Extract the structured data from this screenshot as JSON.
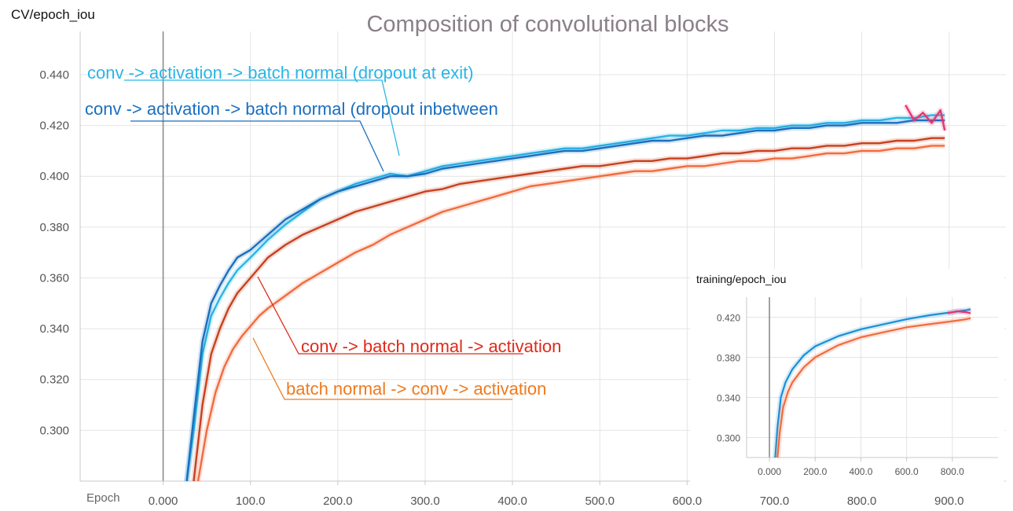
{
  "chart_data": [
    {
      "id": "main",
      "type": "line",
      "panel_label": "CV/epoch_iou",
      "title": "Composition of convolutional blocks",
      "xlabel": "Epoch",
      "x_ticks": [
        "0.000",
        "100.0",
        "200.0",
        "300.0",
        "400.0",
        "500.0",
        "600.0",
        "700.0",
        "800.0",
        "900.0"
      ],
      "x_tick_values": [
        0,
        100,
        200,
        300,
        400,
        500,
        600,
        700,
        800,
        900
      ],
      "y_ticks": [
        "0.300",
        "0.320",
        "0.340",
        "0.360",
        "0.380",
        "0.400",
        "0.420",
        "0.440"
      ],
      "y_tick_values": [
        0.3,
        0.32,
        0.34,
        0.36,
        0.38,
        0.4,
        0.42,
        0.44
      ],
      "xlim": [
        -95,
        965
      ],
      "ylim": [
        0.28,
        0.457
      ],
      "grid": true,
      "series": [
        {
          "name": "conv -> activation -> batch normal (dropout at exit)",
          "color": "#29b6e6",
          "x": [
            27,
            35,
            45,
            55,
            65,
            75,
            85,
            100,
            120,
            140,
            160,
            180,
            200,
            220,
            240,
            260,
            280,
            300,
            320,
            340,
            360,
            380,
            400,
            420,
            440,
            460,
            480,
            500,
            520,
            540,
            560,
            580,
            600,
            620,
            640,
            660,
            680,
            700,
            720,
            740,
            760,
            780,
            800,
            820,
            840,
            860,
            880,
            895
          ],
          "y": [
            0.28,
            0.3,
            0.33,
            0.345,
            0.352,
            0.358,
            0.363,
            0.368,
            0.375,
            0.381,
            0.386,
            0.391,
            0.394,
            0.397,
            0.399,
            0.401,
            0.4,
            0.402,
            0.404,
            0.405,
            0.406,
            0.407,
            0.408,
            0.409,
            0.41,
            0.411,
            0.411,
            0.412,
            0.413,
            0.414,
            0.415,
            0.416,
            0.416,
            0.417,
            0.418,
            0.418,
            0.419,
            0.419,
            0.42,
            0.42,
            0.421,
            0.421,
            0.422,
            0.422,
            0.423,
            0.423,
            0.424,
            0.424
          ],
          "label": "conv -> activation -> batch normal (dropout at exit)"
        },
        {
          "name": "conv -> activation -> batch normal (dropout inbetween",
          "color": "#1a6fbf",
          "x": [
            27,
            35,
            45,
            55,
            65,
            75,
            85,
            100,
            120,
            140,
            160,
            180,
            200,
            220,
            240,
            260,
            280,
            300,
            320,
            340,
            360,
            380,
            400,
            420,
            440,
            460,
            480,
            500,
            520,
            540,
            560,
            580,
            600,
            620,
            640,
            660,
            680,
            700,
            720,
            740,
            760,
            780,
            800,
            820,
            840,
            860,
            880,
            895
          ],
          "y": [
            0.28,
            0.305,
            0.335,
            0.35,
            0.357,
            0.363,
            0.368,
            0.371,
            0.377,
            0.383,
            0.387,
            0.391,
            0.394,
            0.396,
            0.398,
            0.4,
            0.4,
            0.401,
            0.403,
            0.404,
            0.405,
            0.406,
            0.407,
            0.408,
            0.409,
            0.41,
            0.41,
            0.411,
            0.412,
            0.413,
            0.414,
            0.414,
            0.415,
            0.416,
            0.416,
            0.417,
            0.418,
            0.418,
            0.419,
            0.419,
            0.42,
            0.42,
            0.421,
            0.421,
            0.421,
            0.422,
            0.422,
            0.422
          ],
          "label": "conv -> activation -> batch normal (dropout inbetween"
        },
        {
          "name": "conv -> batch normal -> activation",
          "color": "#c8401e",
          "x": [
            35,
            45,
            55,
            65,
            75,
            85,
            100,
            120,
            140,
            160,
            180,
            200,
            220,
            240,
            260,
            280,
            300,
            320,
            340,
            360,
            380,
            400,
            420,
            440,
            460,
            480,
            500,
            520,
            540,
            560,
            580,
            600,
            620,
            640,
            660,
            680,
            700,
            720,
            740,
            760,
            780,
            800,
            820,
            840,
            860,
            880,
            895
          ],
          "y": [
            0.28,
            0.31,
            0.33,
            0.34,
            0.348,
            0.354,
            0.36,
            0.368,
            0.373,
            0.377,
            0.38,
            0.383,
            0.386,
            0.388,
            0.39,
            0.392,
            0.394,
            0.395,
            0.397,
            0.398,
            0.399,
            0.4,
            0.401,
            0.402,
            0.403,
            0.404,
            0.404,
            0.405,
            0.406,
            0.406,
            0.407,
            0.407,
            0.408,
            0.409,
            0.409,
            0.41,
            0.41,
            0.411,
            0.411,
            0.412,
            0.412,
            0.413,
            0.413,
            0.414,
            0.414,
            0.415,
            0.415
          ],
          "label": "conv -> batch normal -> activation"
        },
        {
          "name": "batch normal -> conv -> activation",
          "color": "#f26b3d",
          "x": [
            40,
            50,
            60,
            70,
            80,
            90,
            100,
            110,
            120,
            140,
            160,
            180,
            200,
            220,
            240,
            260,
            280,
            300,
            320,
            340,
            360,
            380,
            400,
            420,
            440,
            460,
            480,
            500,
            520,
            540,
            560,
            580,
            600,
            620,
            640,
            660,
            680,
            700,
            720,
            740,
            760,
            780,
            800,
            820,
            840,
            860,
            880,
            895
          ],
          "y": [
            0.28,
            0.3,
            0.315,
            0.325,
            0.332,
            0.337,
            0.341,
            0.345,
            0.348,
            0.353,
            0.358,
            0.362,
            0.366,
            0.37,
            0.373,
            0.377,
            0.38,
            0.383,
            0.386,
            0.388,
            0.39,
            0.392,
            0.394,
            0.396,
            0.397,
            0.398,
            0.399,
            0.4,
            0.401,
            0.402,
            0.402,
            0.403,
            0.404,
            0.404,
            0.405,
            0.406,
            0.406,
            0.407,
            0.407,
            0.408,
            0.409,
            0.409,
            0.41,
            0.41,
            0.411,
            0.411,
            0.412,
            0.412
          ],
          "label": "batch normal -> conv -> activation"
        },
        {
          "name": "pink",
          "color": "#e8346e",
          "x": [
            850,
            860,
            870,
            880,
            890,
            895
          ],
          "y": [
            0.428,
            0.422,
            0.425,
            0.421,
            0.426,
            0.418
          ],
          "label": ""
        }
      ]
    },
    {
      "id": "inset",
      "type": "line",
      "panel_label": "training/epoch_iou",
      "x_ticks": [
        "0.000",
        "200.0",
        "400.0",
        "600.0",
        "800.0"
      ],
      "x_tick_values": [
        0,
        200,
        400,
        600,
        800
      ],
      "y_ticks": [
        "0.300",
        "0.340",
        "0.380",
        "0.420"
      ],
      "y_tick_values": [
        0.3,
        0.34,
        0.38,
        0.42
      ],
      "xlim": [
        -100,
        1000
      ],
      "ylim": [
        0.28,
        0.44
      ],
      "grid": true,
      "series": [
        {
          "name": "inset-blue",
          "color": "#1a8fd6",
          "x": [
            25,
            35,
            50,
            70,
            100,
            150,
            200,
            300,
            400,
            500,
            600,
            700,
            800,
            860,
            880
          ],
          "y": [
            0.28,
            0.31,
            0.34,
            0.355,
            0.368,
            0.382,
            0.391,
            0.401,
            0.408,
            0.413,
            0.418,
            0.422,
            0.425,
            0.427,
            0.428
          ]
        },
        {
          "name": "inset-orange",
          "color": "#f26b3d",
          "x": [
            35,
            45,
            60,
            80,
            100,
            150,
            200,
            300,
            400,
            500,
            600,
            700,
            800,
            860,
            880
          ],
          "y": [
            0.28,
            0.305,
            0.33,
            0.345,
            0.355,
            0.37,
            0.38,
            0.392,
            0.4,
            0.405,
            0.41,
            0.413,
            0.416,
            0.418,
            0.419
          ]
        },
        {
          "name": "inset-pink",
          "color": "#e8346e",
          "x": [
            780,
            820,
            860,
            880
          ],
          "y": [
            0.424,
            0.426,
            0.425,
            0.424
          ]
        }
      ]
    }
  ]
}
